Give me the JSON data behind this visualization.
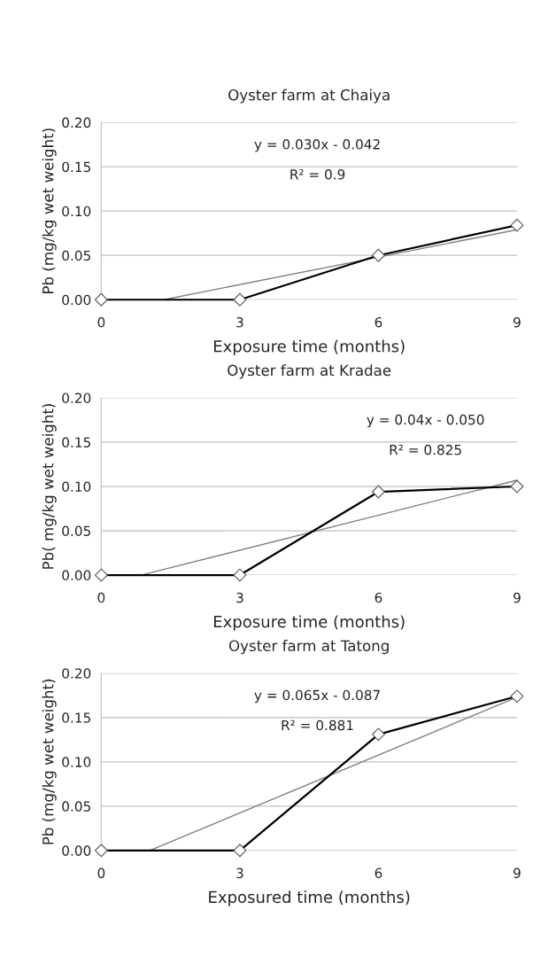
{
  "chart_data": [
    {
      "type": "line",
      "title": "Oyster farm at Chaiya",
      "xlabel": "Exposure time (months)",
      "ylabel": "Pb (mg/kg wet weight)",
      "x": [
        0,
        3,
        6,
        9
      ],
      "xlim": [
        0,
        9
      ],
      "xticks": [
        0,
        3,
        6,
        9
      ],
      "ylim": [
        0,
        0.2
      ],
      "yticks": [
        {
          "value": 0,
          "label": "0.00"
        },
        {
          "value": 0.05,
          "label": "0.05"
        },
        {
          "value": 0.1,
          "label": "0.10"
        },
        {
          "value": 0.15,
          "label": "0.15"
        },
        {
          "value": 0.2,
          "label": "0.20"
        }
      ],
      "grid": "y",
      "marker": "diamond",
      "line_style": "solid",
      "annotations": [
        "y = 0.030x - 0.042",
        "R² = 0.9"
      ],
      "series": [
        {
          "color": "#000000",
          "values": [
            0,
            0,
            0.05,
            0.084
          ]
        },
        {
          "type": "line",
          "color": "#7f7f7f",
          "marker": "none",
          "x": [
            1.35,
            9
          ],
          "values": [
            0,
            0.079
          ]
        }
      ]
    },
    {
      "type": "line",
      "title": "Oyster farm at Kradae",
      "xlabel": "Exposure time (months)",
      "ylabel": "Pb( mg/kg wet weight)",
      "x": [
        0,
        3,
        6,
        9
      ],
      "xlim": [
        0,
        9
      ],
      "xticks": [
        0,
        3,
        6,
        9
      ],
      "ylim": [
        0,
        0.2
      ],
      "yticks": [
        {
          "value": 0,
          "label": "0.00"
        },
        {
          "value": 0.05,
          "label": "0.05"
        },
        {
          "value": 0.1,
          "label": "0.10"
        },
        {
          "value": 0.15,
          "label": "0.15"
        },
        {
          "value": 0.2,
          "label": "0.20"
        }
      ],
      "grid": "y",
      "marker": "diamond",
      "line_style": "solid",
      "annotations": [
        "y = 0.04x - 0.050",
        "R² = 0.825"
      ],
      "series": [
        {
          "color": "#000000",
          "values": [
            0,
            0,
            0.094,
            0.1
          ]
        },
        {
          "type": "line",
          "color": "#7f7f7f",
          "marker": "none",
          "x": [
            0.86,
            9
          ],
          "values": [
            0,
            0.107
          ]
        }
      ]
    },
    {
      "type": "line",
      "title": "Oyster farm at Tatong",
      "xlabel": "Exposured time (months)",
      "ylabel": "Pb (mg/kg wet weight)",
      "x": [
        0,
        3,
        6,
        9
      ],
      "xlim": [
        0,
        9
      ],
      "xticks": [
        0,
        3,
        6,
        9
      ],
      "ylim": [
        0,
        0.2
      ],
      "yticks": [
        {
          "value": 0,
          "label": "0.00"
        },
        {
          "value": 0.05,
          "label": "0.05"
        },
        {
          "value": 0.1,
          "label": "0.10"
        },
        {
          "value": 0.15,
          "label": "0.15"
        },
        {
          "value": 0.2,
          "label": "0.20"
        }
      ],
      "grid": "y",
      "marker": "diamond",
      "line_style": "solid",
      "annotations": [
        "y = 0.065x - 0.087",
        "R² = 0.881"
      ],
      "series": [
        {
          "color": "#000000",
          "values": [
            0,
            0,
            0.131,
            0.174
          ]
        },
        {
          "type": "line",
          "color": "#7f7f7f",
          "marker": "none",
          "x": [
            1.05,
            9
          ],
          "values": [
            0,
            0.173
          ]
        }
      ]
    }
  ]
}
